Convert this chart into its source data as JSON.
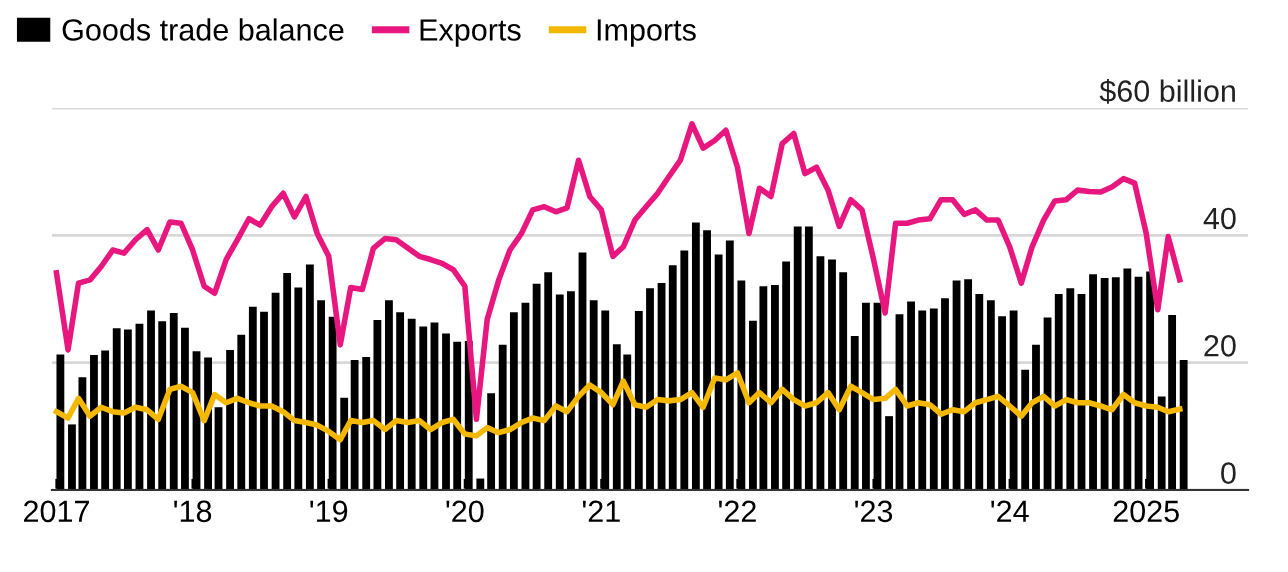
{
  "chart_data": {
    "type": "bar",
    "x": [
      "2017-01",
      "2017-02",
      "2017-03",
      "2017-04",
      "2017-05",
      "2017-06",
      "2017-07",
      "2017-08",
      "2017-09",
      "2017-10",
      "2017-11",
      "2017-12",
      "2018-01",
      "2018-02",
      "2018-03",
      "2018-04",
      "2018-05",
      "2018-06",
      "2018-07",
      "2018-08",
      "2018-09",
      "2018-10",
      "2018-11",
      "2018-12",
      "2019-01",
      "2019-02",
      "2019-03",
      "2019-04",
      "2019-05",
      "2019-06",
      "2019-07",
      "2019-08",
      "2019-09",
      "2019-10",
      "2019-11",
      "2019-12",
      "2020-01",
      "2020-02",
      "2020-03",
      "2020-04",
      "2020-05",
      "2020-06",
      "2020-07",
      "2020-08",
      "2020-09",
      "2020-10",
      "2020-11",
      "2020-12",
      "2021-01",
      "2021-02",
      "2021-03",
      "2021-04",
      "2021-05",
      "2021-06",
      "2021-07",
      "2021-08",
      "2021-09",
      "2021-10",
      "2021-11",
      "2021-12",
      "2022-01",
      "2022-02",
      "2022-03",
      "2022-04",
      "2022-05",
      "2022-06",
      "2022-07",
      "2022-08",
      "2022-09",
      "2022-10",
      "2022-11",
      "2022-12",
      "2023-01",
      "2023-02",
      "2023-03",
      "2023-04",
      "2023-05",
      "2023-06",
      "2023-07",
      "2023-08",
      "2023-09",
      "2023-10",
      "2023-11",
      "2023-12",
      "2024-01",
      "2024-02",
      "2024-03",
      "2024-04",
      "2024-05",
      "2024-06",
      "2024-07",
      "2024-08",
      "2024-09",
      "2024-10",
      "2024-11",
      "2024-12",
      "2025-01",
      "2025-02",
      "2025-03",
      "2025-04"
    ],
    "series": [
      {
        "name": "Goods trade balance",
        "color": "#000000",
        "values": [
          21.3,
          10.3,
          17.7,
          21.2,
          21.9,
          25.4,
          25.2,
          26.1,
          28.2,
          26.5,
          27.8,
          25.5,
          21.8,
          20.8,
          13,
          22.0,
          24.4,
          28.8,
          28.0,
          31.0,
          34.1,
          31.8,
          35.4,
          29.8,
          27.2,
          14.5,
          20.4,
          20.9,
          26.7,
          29.8,
          27.9,
          26.9,
          25.7,
          26.3,
          24.6,
          23.3,
          23.4,
          1.8,
          15.2,
          22.8,
          27.9,
          29.4,
          32.4,
          34.2,
          30.7,
          31.2,
          37.3,
          29.8,
          28.2,
          22.9,
          21.3,
          28.1,
          31.7,
          32.5,
          35.3,
          37.6,
          42.0,
          40.8,
          37.0,
          39.2,
          32.9,
          26.6,
          32.0,
          32.2,
          35.9,
          41.4,
          41.4,
          36.7,
          36.2,
          34.2,
          24.2,
          29.4,
          29.4,
          11.6,
          27.6,
          29.6,
          28.2,
          28.5,
          30.1,
          32.9,
          33.1,
          30.8,
          29.8,
          27.3,
          28.2,
          18.9,
          22.8,
          27.1,
          30.8,
          31.7,
          30.8,
          33.9,
          33.3,
          33.4,
          34.8,
          33.5,
          34.3,
          14.7,
          27.5,
          20.4
        ]
      },
      {
        "name": "Exports",
        "type": "line",
        "color": "#e8177f",
        "values": [
          34.1,
          22.0,
          32.5,
          33.0,
          35.1,
          37.7,
          37.2,
          39.3,
          40.9,
          37.7,
          42.1,
          41.9,
          37.7,
          32.0,
          30.9,
          36.2,
          39.3,
          42.6,
          41.6,
          44.5,
          46.6,
          42.9,
          46.1,
          40.3,
          36.7,
          22.8,
          31.8,
          31.5,
          38.0,
          39.5,
          39.3,
          38.0,
          36.7,
          36.2,
          35.6,
          34.6,
          32.0,
          11.1,
          26.8,
          33.0,
          37.7,
          40.3,
          44.0,
          44.5,
          43.7,
          44.3,
          51.8,
          46.1,
          44.0,
          36.7,
          38.2,
          42.4,
          44.5,
          46.6,
          49.2,
          51.8,
          57.5,
          53.7,
          54.9,
          56.5,
          50.7,
          40.3,
          47.4,
          46.1,
          54.4,
          56.0,
          49.7,
          50.7,
          47.1,
          41.4,
          45.6,
          44.0,
          36.2,
          27.8,
          41.9,
          41.9,
          42.4,
          42.6,
          45.6,
          45.6,
          43.3,
          44.0,
          42.4,
          42.4,
          38.2,
          32.5,
          38.2,
          42.4,
          45.4,
          45.6,
          47.1,
          46.9,
          46.8,
          47.6,
          48.9,
          48.2,
          40.3,
          28.3,
          39.8,
          33.0
        ]
      },
      {
        "name": "Imports",
        "type": "line",
        "color": "#f5b800",
        "values": [
          12.3,
          11.3,
          14.4,
          11.6,
          13.0,
          12.3,
          12.1,
          13.0,
          12.6,
          11.1,
          15.8,
          16.3,
          15.3,
          10.9,
          15.0,
          13.7,
          14.4,
          13.7,
          13.2,
          13.2,
          12.3,
          10.9,
          10.6,
          10.2,
          9.2,
          7.9,
          10.9,
          10.6,
          10.9,
          9.5,
          10.9,
          10.6,
          10.9,
          9.5,
          10.6,
          11.1,
          8.8,
          8.5,
          9.8,
          9.0,
          9.5,
          10.6,
          11.3,
          10.9,
          13.2,
          12.3,
          14.7,
          16.5,
          15.3,
          13.4,
          17.1,
          13.4,
          13.0,
          14.2,
          14.0,
          14.2,
          15.3,
          13.0,
          17.6,
          17.3,
          18.4,
          13.7,
          15.3,
          13.7,
          15.8,
          14.2,
          13.2,
          13.7,
          15.3,
          12.6,
          16.3,
          15.3,
          14.2,
          14.4,
          15.8,
          13.2,
          13.7,
          13.4,
          11.9,
          12.6,
          12.3,
          13.7,
          14.2,
          14.7,
          13.2,
          11.6,
          13.7,
          14.7,
          13.2,
          14.2,
          13.7,
          13.7,
          13.2,
          12.6,
          15.0,
          13.7,
          13.2,
          13.0,
          12.3,
          12.7
        ]
      }
    ],
    "xlim": [
      "2016-12-20",
      "2025-10-01"
    ],
    "xticks": [
      {
        "value": "2017-01",
        "label": "2017"
      },
      {
        "value": "2018-01",
        "label": "'18"
      },
      {
        "value": "2019-01",
        "label": "'19"
      },
      {
        "value": "2020-01",
        "label": "'20"
      },
      {
        "value": "2021-01",
        "label": "'21"
      },
      {
        "value": "2022-01",
        "label": "'22"
      },
      {
        "value": "2023-01",
        "label": "'23"
      },
      {
        "value": "2024-01",
        "label": "'24"
      },
      {
        "value": "2025-01",
        "label": "2025"
      }
    ],
    "ylim": [
      0,
      60
    ],
    "yticks": [
      0,
      20,
      40,
      {
        "value": 60,
        "label": "$60 billion"
      }
    ],
    "grid": "y",
    "legend": "top left"
  }
}
